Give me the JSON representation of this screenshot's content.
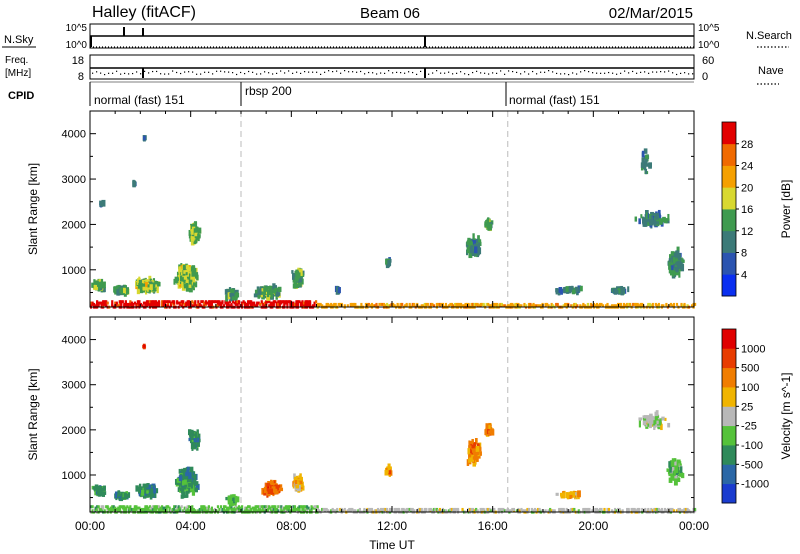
{
  "header": {
    "station": "Halley (fitACF)",
    "beam": "Beam 06",
    "date": "02/Mar/2015"
  },
  "panels": {
    "nsky_label": "N.Sky",
    "nsky_ticks": [
      "10^5",
      "10^0"
    ],
    "nsearch_label": "N.Search",
    "nsearch_ticks": [
      "10^5",
      "10^0"
    ],
    "freq_label_1": "Freq.",
    "freq_label_2": "[MHz]",
    "freq_ticks": [
      "18",
      "8"
    ],
    "nave_label": "Nave",
    "nave_ticks": [
      "60",
      "0"
    ],
    "cpid_label": "CPID",
    "cpid_segments": [
      "normal (fast) 151",
      "rbsp 200",
      "normal (fast) 151"
    ]
  },
  "chart_data": [
    {
      "type": "heatmap",
      "title": "Power",
      "xlabel": "Time UT",
      "ylabel": "Slant Range [km]",
      "x_ticks": [
        "00:00",
        "04:00",
        "08:00",
        "12:00",
        "16:00",
        "20:00",
        "00:00"
      ],
      "xlim_hours": [
        0,
        24
      ],
      "y_ticks": [
        1000,
        2000,
        3000,
        4000
      ],
      "ylim_km": [
        180,
        4500
      ],
      "colorbar": {
        "label": "Power [dB]",
        "ticks": [
          "4",
          "8",
          "12",
          "16",
          "20",
          "24",
          "28"
        ],
        "colors": [
          "#0a2ff0",
          "#2b54b0",
          "#3c7a78",
          "#3f9a4f",
          "#d8d830",
          "#f5a000",
          "#f06a00",
          "#e20000"
        ]
      },
      "blobs": [
        {
          "t": 0.3,
          "r": 650,
          "dt": 0.5,
          "dr": 200,
          "n": 80,
          "v": 3
        },
        {
          "t": 1.2,
          "r": 550,
          "dt": 0.6,
          "dr": 150,
          "n": 70,
          "v": 3
        },
        {
          "t": 2.2,
          "r": 650,
          "dt": 0.9,
          "dr": 300,
          "n": 170,
          "v": 3.5
        },
        {
          "t": 3.8,
          "r": 850,
          "dt": 0.9,
          "dr": 600,
          "n": 240,
          "v": 3.5
        },
        {
          "t": 4.1,
          "r": 1800,
          "dt": 0.4,
          "dr": 450,
          "n": 110,
          "v": 3.5
        },
        {
          "t": 5.6,
          "r": 450,
          "dt": 0.5,
          "dr": 200,
          "n": 70,
          "v": 2.5
        },
        {
          "t": 7.0,
          "r": 500,
          "dt": 1.0,
          "dr": 250,
          "n": 130,
          "v": 3
        },
        {
          "t": 8.2,
          "r": 800,
          "dt": 0.4,
          "dr": 400,
          "n": 80,
          "v": 3
        },
        {
          "t": 1.7,
          "r": 2900,
          "dt": 0.1,
          "dr": 150,
          "n": 6,
          "v": 2
        },
        {
          "t": 2.1,
          "r": 3900,
          "dt": 0.1,
          "dr": 100,
          "n": 5,
          "v": 2
        },
        {
          "t": 0.4,
          "r": 2450,
          "dt": 0.2,
          "dr": 100,
          "n": 8,
          "v": 2
        },
        {
          "t": 11.8,
          "r": 1150,
          "dt": 0.2,
          "dr": 150,
          "n": 20,
          "v": 2
        },
        {
          "t": 9.8,
          "r": 550,
          "dt": 0.2,
          "dr": 120,
          "n": 10,
          "v": 2
        },
        {
          "t": 15.2,
          "r": 1500,
          "dt": 0.6,
          "dr": 550,
          "n": 95,
          "v": 2.5
        },
        {
          "t": 15.8,
          "r": 2000,
          "dt": 0.3,
          "dr": 250,
          "n": 45,
          "v": 3
        },
        {
          "t": 19.0,
          "r": 550,
          "dt": 1.2,
          "dr": 120,
          "n": 35,
          "v": 2
        },
        {
          "t": 21.0,
          "r": 550,
          "dt": 0.8,
          "dr": 120,
          "n": 25,
          "v": 2
        },
        {
          "t": 22.3,
          "r": 2100,
          "dt": 1.2,
          "dr": 400,
          "n": 80,
          "v": 2
        },
        {
          "t": 23.2,
          "r": 1150,
          "dt": 0.6,
          "dr": 600,
          "n": 130,
          "v": 2.5
        },
        {
          "t": 22.0,
          "r": 3400,
          "dt": 0.4,
          "dr": 500,
          "n": 25,
          "v": 2
        }
      ],
      "ground_scatter": [
        {
          "t0": 0.0,
          "t1": 9.0,
          "r0": 180,
          "r1": 320,
          "v": 7
        },
        {
          "t0": 9.0,
          "t1": 24.0,
          "r0": 180,
          "r1": 250,
          "v": 5
        }
      ]
    },
    {
      "type": "heatmap",
      "xlabel": "Time UT",
      "ylabel": "Slant Range [km]",
      "x_ticks": [
        "00:00",
        "04:00",
        "08:00",
        "12:00",
        "16:00",
        "20:00",
        "00:00"
      ],
      "xlim_hours": [
        0,
        24
      ],
      "y_ticks": [
        1000,
        2000,
        3000,
        4000
      ],
      "ylim_km": [
        180,
        4500
      ],
      "colorbar": {
        "label": "Velocity [m s^-1]",
        "ticks": [
          "1000",
          "500",
          "100",
          "25",
          "-25",
          "-100",
          "-500",
          "-1000"
        ],
        "colors": [
          "#1a3ccf",
          "#2b67a6",
          "#2f8a5a",
          "#55c23a",
          "#b8b8b8",
          "#f0b400",
          "#f07d00",
          "#e83c00",
          "#e00000"
        ]
      },
      "blobs": [
        {
          "t": 0.3,
          "r": 650,
          "dt": 0.5,
          "dr": 200,
          "n": 60,
          "v": 2
        },
        {
          "t": 1.2,
          "r": 550,
          "dt": 0.6,
          "dr": 150,
          "n": 60,
          "v": 2
        },
        {
          "t": 2.2,
          "r": 650,
          "dt": 0.9,
          "dr": 300,
          "n": 150,
          "v": 2
        },
        {
          "t": 3.8,
          "r": 850,
          "dt": 0.9,
          "dr": 600,
          "n": 220,
          "v": 2
        },
        {
          "t": 4.1,
          "r": 1800,
          "dt": 0.4,
          "dr": 450,
          "n": 100,
          "v": 2
        },
        {
          "t": 5.6,
          "r": 450,
          "dt": 0.5,
          "dr": 200,
          "n": 60,
          "v": 3
        },
        {
          "t": 7.2,
          "r": 700,
          "dt": 0.7,
          "dr": 300,
          "n": 110,
          "v": 6.5
        },
        {
          "t": 8.2,
          "r": 800,
          "dt": 0.4,
          "dr": 400,
          "n": 70,
          "v": 5
        },
        {
          "t": 11.8,
          "r": 1100,
          "dt": 0.2,
          "dr": 150,
          "n": 18,
          "v": 5.5
        },
        {
          "t": 15.2,
          "r": 1500,
          "dt": 0.6,
          "dr": 550,
          "n": 90,
          "v": 6
        },
        {
          "t": 15.8,
          "r": 2000,
          "dt": 0.3,
          "dr": 250,
          "n": 40,
          "v": 6
        },
        {
          "t": 19.0,
          "r": 550,
          "dt": 1.2,
          "dr": 120,
          "n": 30,
          "v": 5
        },
        {
          "t": 22.3,
          "r": 2200,
          "dt": 1.2,
          "dr": 400,
          "n": 60,
          "v": 4
        },
        {
          "t": 23.2,
          "r": 1100,
          "dt": 0.6,
          "dr": 500,
          "n": 110,
          "v": 3
        },
        {
          "t": 2.1,
          "r": 3850,
          "dt": 0.1,
          "dr": 80,
          "n": 4,
          "v": 7
        }
      ],
      "ground_scatter": [
        {
          "t0": 0.0,
          "t1": 9.0,
          "r0": 180,
          "r1": 320,
          "v": 3
        },
        {
          "t0": 9.0,
          "t1": 24.0,
          "r0": 180,
          "r1": 250,
          "v": 4
        }
      ]
    }
  ]
}
